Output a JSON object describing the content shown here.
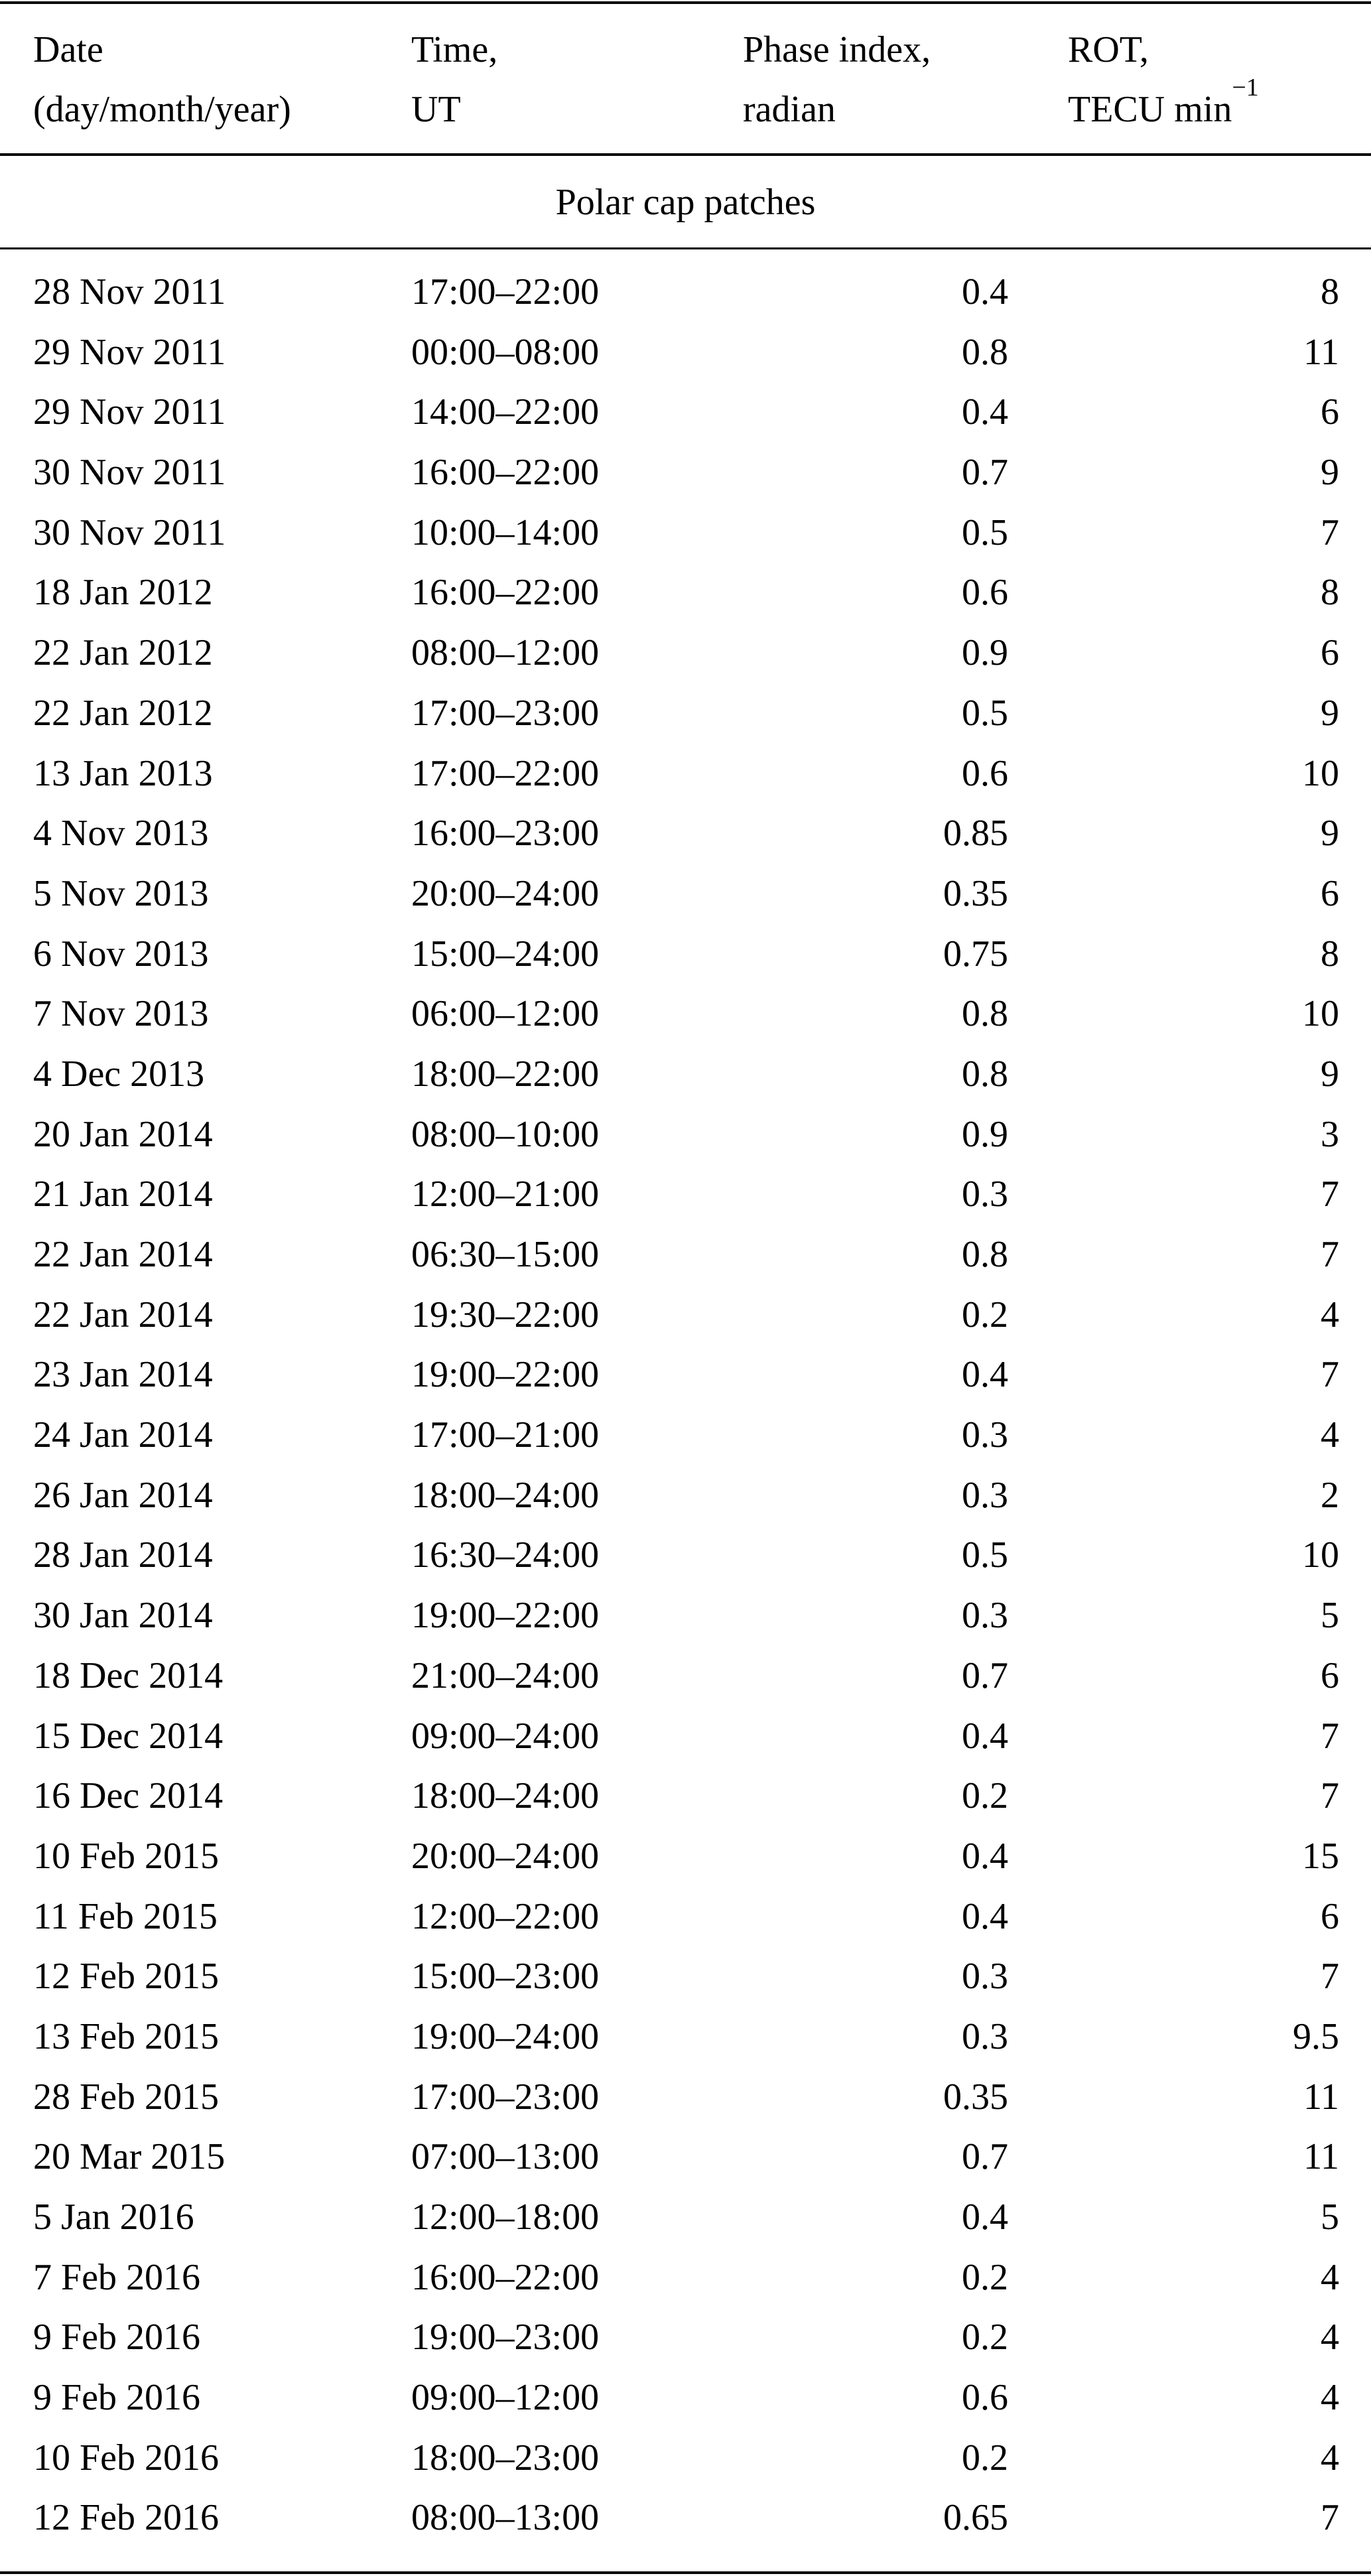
{
  "table": {
    "headers": [
      {
        "line1": "Date",
        "line2": "(day/month/year)"
      },
      {
        "line1": "Time,",
        "line2": "UT"
      },
      {
        "line1": "Phase index,",
        "line2": "radian"
      },
      {
        "line1": "ROT,",
        "line2": "TECU min",
        "superscript": "−1"
      }
    ],
    "section_title": "Polar cap patches",
    "rows": [
      [
        "28 Nov 2011",
        "17:00–22:00",
        "0.4",
        "8"
      ],
      [
        "29 Nov 2011",
        "00:00–08:00",
        "0.8",
        "11"
      ],
      [
        "29 Nov 2011",
        "14:00–22:00",
        "0.4",
        "6"
      ],
      [
        "30 Nov 2011",
        "16:00–22:00",
        "0.7",
        "9"
      ],
      [
        "30 Nov 2011",
        "10:00–14:00",
        "0.5",
        "7"
      ],
      [
        "18 Jan 2012",
        "16:00–22:00",
        "0.6",
        "8"
      ],
      [
        "22 Jan 2012",
        "08:00–12:00",
        "0.9",
        "6"
      ],
      [
        "22 Jan 2012",
        "17:00–23:00",
        "0.5",
        "9"
      ],
      [
        "13 Jan 2013",
        "17:00–22:00",
        "0.6",
        "10"
      ],
      [
        "4 Nov 2013",
        "16:00–23:00",
        "0.85",
        "9"
      ],
      [
        "5 Nov 2013",
        "20:00–24:00",
        "0.35",
        "6"
      ],
      [
        "6 Nov 2013",
        "15:00–24:00",
        "0.75",
        "8"
      ],
      [
        "7 Nov 2013",
        "06:00–12:00",
        "0.8",
        "10"
      ],
      [
        "4 Dec 2013",
        "18:00–22:00",
        "0.8",
        "9"
      ],
      [
        "20 Jan 2014",
        "08:00–10:00",
        "0.9",
        "3"
      ],
      [
        "21 Jan 2014",
        "12:00–21:00",
        "0.3",
        "7"
      ],
      [
        "22 Jan 2014",
        "06:30–15:00",
        "0.8",
        "7"
      ],
      [
        "22 Jan 2014",
        "19:30–22:00",
        "0.2",
        "4"
      ],
      [
        "23 Jan 2014",
        "19:00–22:00",
        "0.4",
        "7"
      ],
      [
        "24 Jan 2014",
        "17:00–21:00",
        "0.3",
        "4"
      ],
      [
        "26 Jan 2014",
        "18:00–24:00",
        "0.3",
        "2"
      ],
      [
        "28 Jan 2014",
        "16:30–24:00",
        "0.5",
        "10"
      ],
      [
        "30 Jan 2014",
        "19:00–22:00",
        "0.3",
        "5"
      ],
      [
        "18 Dec 2014",
        "21:00–24:00",
        "0.7",
        "6"
      ],
      [
        "15 Dec 2014",
        "09:00–24:00",
        "0.4",
        "7"
      ],
      [
        "16 Dec 2014",
        "18:00–24:00",
        "0.2",
        "7"
      ],
      [
        "10 Feb 2015",
        "20:00–24:00",
        "0.4",
        "15"
      ],
      [
        "11 Feb 2015",
        "12:00–22:00",
        "0.4",
        "6"
      ],
      [
        "12 Feb 2015",
        "15:00–23:00",
        "0.3",
        "7"
      ],
      [
        "13 Feb 2015",
        "19:00–24:00",
        "0.3",
        "9.5"
      ],
      [
        "28 Feb 2015",
        "17:00–23:00",
        "0.35",
        "11"
      ],
      [
        "20 Mar 2015",
        "07:00–13:00",
        "0.7",
        "11"
      ],
      [
        "5 Jan 2016",
        "12:00–18:00",
        "0.4",
        "5"
      ],
      [
        "7 Feb 2016",
        "16:00–22:00",
        "0.2",
        "4"
      ],
      [
        "9 Feb 2016",
        "19:00–23:00",
        "0.2",
        "4"
      ],
      [
        "9 Feb 2016",
        "09:00–12:00",
        "0.6",
        "4"
      ],
      [
        "10 Feb 2016",
        "18:00–23:00",
        "0.2",
        "4"
      ],
      [
        "12 Feb 2016",
        "08:00–13:00",
        "0.65",
        "7"
      ]
    ]
  }
}
